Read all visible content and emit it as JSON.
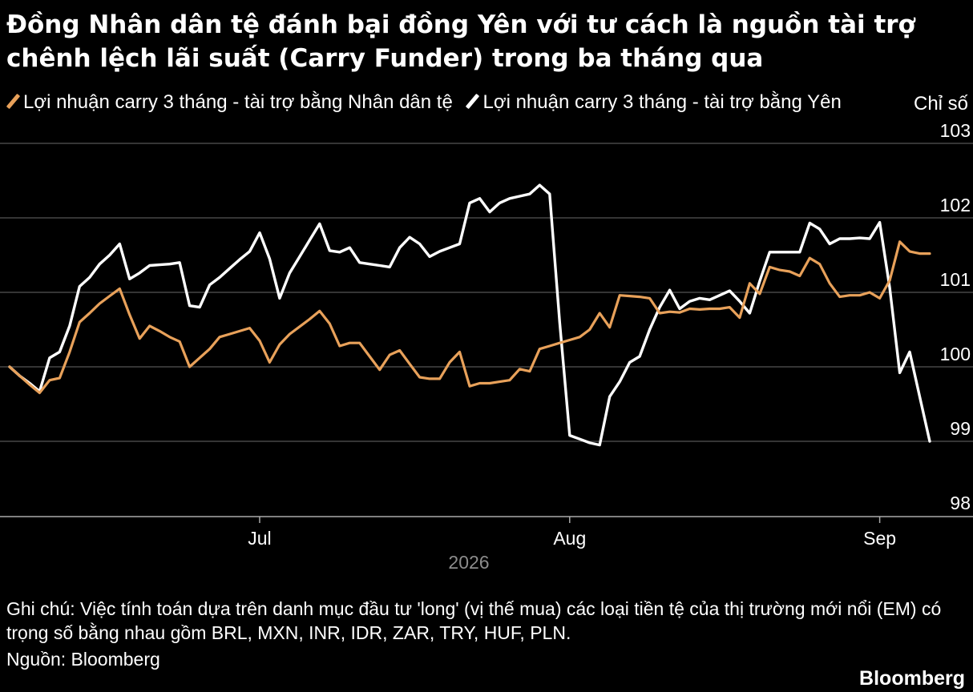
{
  "title": "Đồng Nhân dân tệ đánh bại đồng Yên với tư cách là nguồn tài trợ chênh lệch lãi suất (Carry Funder) trong ba tháng qua",
  "note": "Ghi chú: Việc tính toán dựa trên danh mục đầu tư 'long' (vị thế mua) các loại tiền tệ của thị trường mới nổi (EM) có trọng số bằng nhau gồm BRL, MXN, INR, IDR, ZAR, TRY, HUF, PLN.",
  "source": "Nguồn: Bloomberg",
  "brand": "Bloomberg",
  "colors": {
    "background": "#000000",
    "cny": "#e8a15a",
    "jpy": "#ffffff",
    "grid": "#555555",
    "axis": "#aaaaaa"
  },
  "chart_data": {
    "type": "line",
    "ylabel": "Chỉ số",
    "ylim": [
      98,
      103
    ],
    "yticks": [
      "98",
      "99",
      "100",
      "101",
      "102",
      "103"
    ],
    "xlim": [
      0,
      92
    ],
    "xticks": [
      {
        "label": "Jul",
        "x": 25
      },
      {
        "label": "Aug",
        "x": 56
      },
      {
        "label": "Sep",
        "x": 87
      }
    ],
    "xlabel": "2026",
    "grid": true,
    "legend_position": "top-left",
    "series": [
      {
        "name": "Lợi nhuận carry 3 tháng - tài trợ bằng Nhân dân tệ",
        "color": "#e8a15a",
        "points": [
          [
            0,
            100
          ],
          [
            1,
            99.88
          ],
          [
            2,
            99.76
          ],
          [
            3,
            99.65
          ],
          [
            4,
            99.82
          ],
          [
            5,
            99.85
          ],
          [
            6,
            100.2
          ],
          [
            7,
            100.6
          ],
          [
            8,
            100.72
          ],
          [
            9,
            100.85
          ],
          [
            10,
            100.95
          ],
          [
            11,
            101.05
          ],
          [
            12,
            100.7
          ],
          [
            13,
            100.38
          ],
          [
            14,
            100.55
          ],
          [
            15,
            100.48
          ],
          [
            16,
            100.4
          ],
          [
            17,
            100.34
          ],
          [
            18,
            100.0
          ],
          [
            19,
            100.12
          ],
          [
            20,
            100.24
          ],
          [
            21,
            100.4
          ],
          [
            22,
            100.44
          ],
          [
            23,
            100.48
          ],
          [
            24,
            100.52
          ],
          [
            25,
            100.35
          ],
          [
            26,
            100.06
          ],
          [
            27,
            100.3
          ],
          [
            28,
            100.44
          ],
          [
            29,
            100.54
          ],
          [
            30,
            100.64
          ],
          [
            31,
            100.75
          ],
          [
            32,
            100.58
          ],
          [
            33,
            100.28
          ],
          [
            34,
            100.32
          ],
          [
            35,
            100.32
          ],
          [
            36,
            100.14
          ],
          [
            37,
            99.96
          ],
          [
            38,
            100.16
          ],
          [
            39,
            100.22
          ],
          [
            40,
            100.04
          ],
          [
            41,
            99.86
          ],
          [
            42,
            99.84
          ],
          [
            43,
            99.84
          ],
          [
            44,
            100.06
          ],
          [
            45,
            100.2
          ],
          [
            46,
            99.74
          ],
          [
            47,
            99.78
          ],
          [
            48,
            99.78
          ],
          [
            49,
            99.8
          ],
          [
            50,
            99.82
          ],
          [
            51,
            99.97
          ],
          [
            52,
            99.94
          ],
          [
            53,
            100.24
          ],
          [
            54,
            100.28
          ],
          [
            55,
            100.32
          ],
          [
            56,
            100.36
          ],
          [
            57,
            100.4
          ],
          [
            58,
            100.5
          ],
          [
            59,
            100.72
          ],
          [
            60,
            100.53
          ],
          [
            61,
            100.96
          ],
          [
            62,
            100.95
          ],
          [
            63,
            100.94
          ],
          [
            64,
            100.92
          ],
          [
            65,
            100.72
          ],
          [
            66,
            100.74
          ],
          [
            67,
            100.73
          ],
          [
            68,
            100.78
          ],
          [
            69,
            100.77
          ],
          [
            70,
            100.78
          ],
          [
            71,
            100.78
          ],
          [
            72,
            100.8
          ],
          [
            73,
            100.66
          ],
          [
            74,
            101.12
          ],
          [
            75,
            100.98
          ],
          [
            76,
            101.34
          ],
          [
            77,
            101.3
          ],
          [
            78,
            101.28
          ],
          [
            79,
            101.22
          ],
          [
            80,
            101.46
          ],
          [
            81,
            101.38
          ],
          [
            82,
            101.12
          ],
          [
            83,
            100.94
          ],
          [
            84,
            100.96
          ],
          [
            85,
            100.96
          ],
          [
            86,
            101.0
          ],
          [
            87,
            100.92
          ],
          [
            88,
            101.16
          ],
          [
            89,
            101.68
          ],
          [
            90,
            101.55
          ],
          [
            91,
            101.52
          ],
          [
            92,
            101.52
          ]
        ]
      },
      {
        "name": "Lợi nhuận carry 3 tháng - tài trợ bằng Yên",
        "color": "#ffffff",
        "points": [
          [
            0,
            100
          ],
          [
            1,
            99.88
          ],
          [
            2,
            99.78
          ],
          [
            3,
            99.67
          ],
          [
            4,
            100.12
          ],
          [
            5,
            100.2
          ],
          [
            6,
            100.55
          ],
          [
            7,
            101.08
          ],
          [
            8,
            101.2
          ],
          [
            9,
            101.38
          ],
          [
            10,
            101.5
          ],
          [
            11,
            101.65
          ],
          [
            12,
            101.18
          ],
          [
            13,
            101.26
          ],
          [
            14,
            101.36
          ],
          [
            15,
            101.37
          ],
          [
            16,
            101.38
          ],
          [
            17,
            101.4
          ],
          [
            18,
            100.82
          ],
          [
            19,
            100.8
          ],
          [
            20,
            101.1
          ],
          [
            21,
            101.2
          ],
          [
            22,
            101.32
          ],
          [
            23,
            101.44
          ],
          [
            24,
            101.55
          ],
          [
            25,
            101.8
          ],
          [
            26,
            101.45
          ],
          [
            27,
            100.92
          ],
          [
            28,
            101.26
          ],
          [
            29,
            101.48
          ],
          [
            30,
            101.7
          ],
          [
            31,
            101.92
          ],
          [
            32,
            101.56
          ],
          [
            33,
            101.54
          ],
          [
            34,
            101.6
          ],
          [
            35,
            101.4
          ],
          [
            36,
            101.38
          ],
          [
            37,
            101.36
          ],
          [
            38,
            101.34
          ],
          [
            39,
            101.6
          ],
          [
            40,
            101.74
          ],
          [
            41,
            101.65
          ],
          [
            42,
            101.48
          ],
          [
            43,
            101.55
          ],
          [
            44,
            101.6
          ],
          [
            45,
            101.65
          ],
          [
            46,
            102.2
          ],
          [
            47,
            102.26
          ],
          [
            48,
            102.08
          ],
          [
            49,
            102.2
          ],
          [
            50,
            102.26
          ],
          [
            51,
            102.29
          ],
          [
            52,
            102.32
          ],
          [
            53,
            102.44
          ],
          [
            54,
            102.32
          ],
          [
            55,
            100.6
          ],
          [
            56,
            99.08
          ],
          [
            57,
            99.03
          ],
          [
            58,
            98.98
          ],
          [
            59,
            98.95
          ],
          [
            60,
            99.6
          ],
          [
            61,
            99.8
          ],
          [
            62,
            100.06
          ],
          [
            63,
            100.14
          ],
          [
            64,
            100.5
          ],
          [
            65,
            100.8
          ],
          [
            66,
            101.03
          ],
          [
            67,
            100.78
          ],
          [
            68,
            100.88
          ],
          [
            69,
            100.92
          ],
          [
            70,
            100.9
          ],
          [
            71,
            100.96
          ],
          [
            72,
            101.02
          ],
          [
            73,
            100.88
          ],
          [
            74,
            100.72
          ],
          [
            75,
            101.15
          ],
          [
            76,
            101.54
          ],
          [
            77,
            101.54
          ],
          [
            78,
            101.54
          ],
          [
            79,
            101.54
          ],
          [
            80,
            101.93
          ],
          [
            81,
            101.85
          ],
          [
            82,
            101.65
          ],
          [
            83,
            101.72
          ],
          [
            84,
            101.72
          ],
          [
            85,
            101.73
          ],
          [
            86,
            101.72
          ],
          [
            87,
            101.94
          ],
          [
            88,
            101.06
          ],
          [
            89,
            99.92
          ],
          [
            90,
            100.2
          ],
          [
            91,
            99.6
          ],
          [
            92,
            99.0
          ]
        ]
      }
    ]
  }
}
